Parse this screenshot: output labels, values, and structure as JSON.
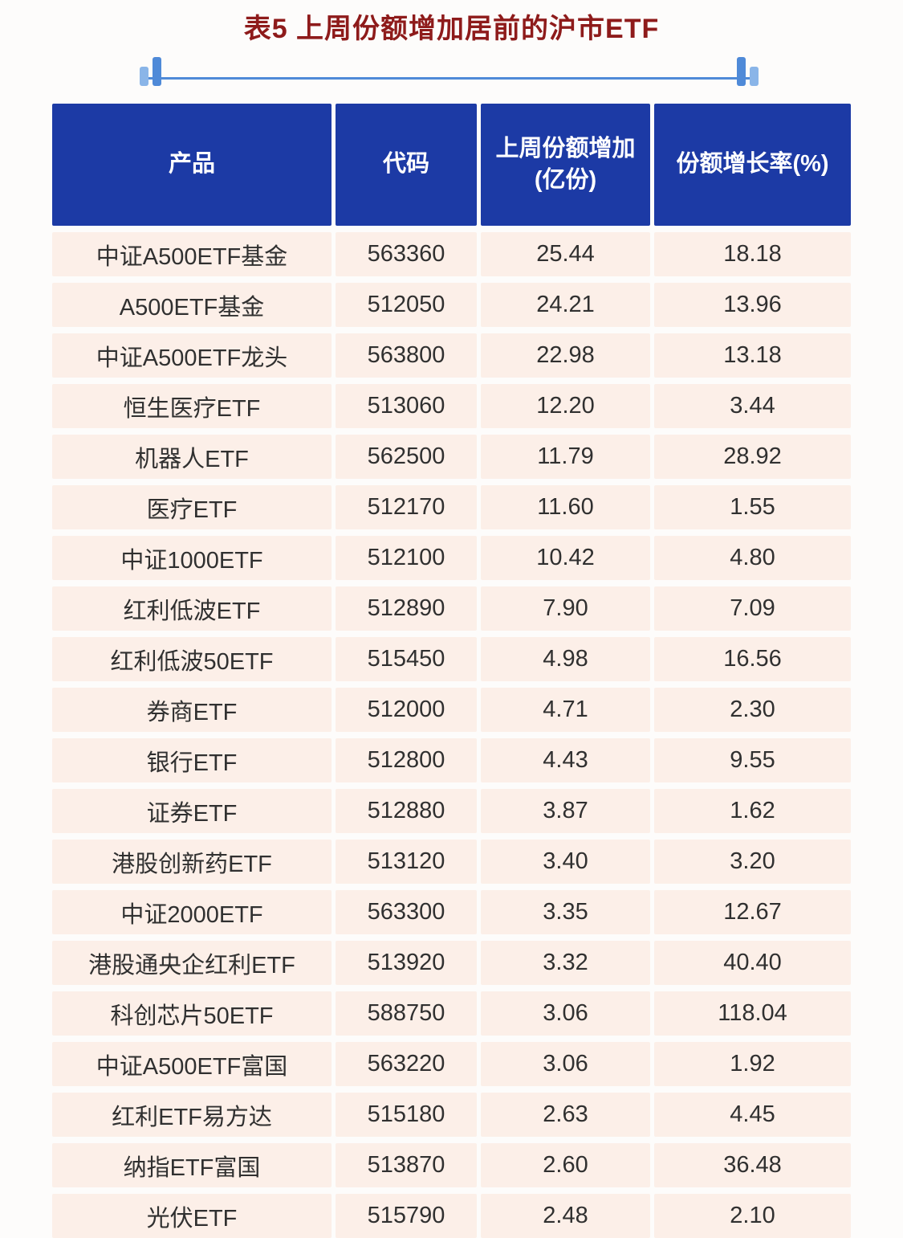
{
  "page": {
    "title": "表5 上周份额增加居前的沪市ETF"
  },
  "colors": {
    "header_bg": "#1c3aa5",
    "row_bg": "#fcefe8",
    "title_color": "#8e1b1b",
    "accent": "#4f8ad8",
    "accent_light": "#8ab5e8",
    "cell_text": "#303030"
  },
  "chart_data": {
    "type": "table",
    "title": "表5 上周份额增加居前的沪市ETF",
    "columns": [
      "产品",
      "代码",
      "上周份额增加(亿份)",
      "份额增长率(%)"
    ],
    "column_display": [
      "产品",
      "代码",
      "上周份额增加\n(亿份)",
      "份额增长率(%)"
    ],
    "rows": [
      [
        "中证A500ETF基金",
        "563360",
        "25.44",
        "18.18"
      ],
      [
        "A500ETF基金",
        "512050",
        "24.21",
        "13.96"
      ],
      [
        "中证A500ETF龙头",
        "563800",
        "22.98",
        "13.18"
      ],
      [
        "恒生医疗ETF",
        "513060",
        "12.20",
        "3.44"
      ],
      [
        "机器人ETF",
        "562500",
        "11.79",
        "28.92"
      ],
      [
        "医疗ETF",
        "512170",
        "11.60",
        "1.55"
      ],
      [
        "中证1000ETF",
        "512100",
        "10.42",
        "4.80"
      ],
      [
        "红利低波ETF",
        "512890",
        "7.90",
        "7.09"
      ],
      [
        "红利低波50ETF",
        "515450",
        "4.98",
        "16.56"
      ],
      [
        "券商ETF",
        "512000",
        "4.71",
        "2.30"
      ],
      [
        "银行ETF",
        "512800",
        "4.43",
        "9.55"
      ],
      [
        "证券ETF",
        "512880",
        "3.87",
        "1.62"
      ],
      [
        "港股创新药ETF",
        "513120",
        "3.40",
        "3.20"
      ],
      [
        "中证2000ETF",
        "563300",
        "3.35",
        "12.67"
      ],
      [
        "港股通央企红利ETF",
        "513920",
        "3.32",
        "40.40"
      ],
      [
        "科创芯片50ETF",
        "588750",
        "3.06",
        "118.04"
      ],
      [
        "中证A500ETF富国",
        "563220",
        "3.06",
        "1.92"
      ],
      [
        "红利ETF易方达",
        "515180",
        "2.63",
        "4.45"
      ],
      [
        "纳指ETF富国",
        "513870",
        "2.60",
        "36.48"
      ],
      [
        "光伏ETF",
        "515790",
        "2.48",
        "2.10"
      ]
    ]
  }
}
